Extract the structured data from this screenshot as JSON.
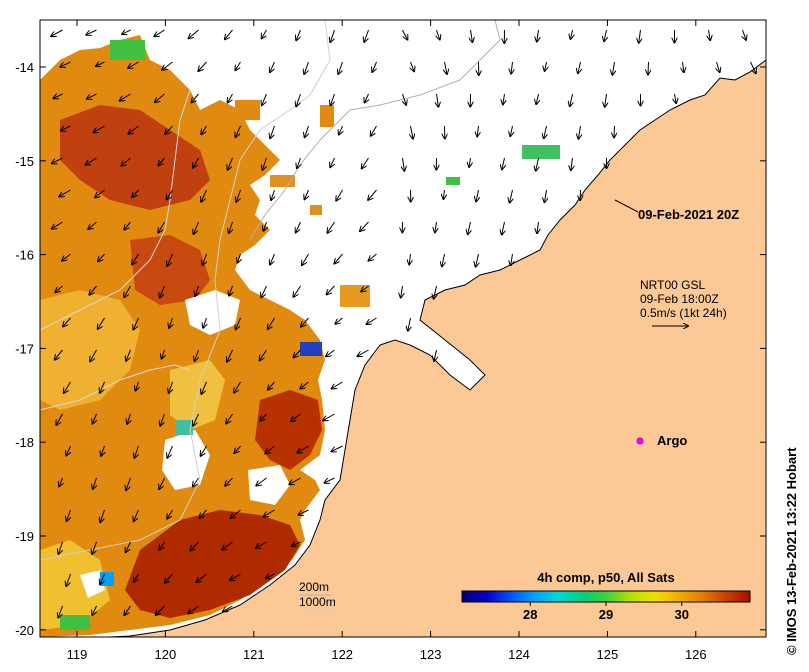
{
  "map": {
    "x_ticks": [
      "119",
      "120",
      "121",
      "122",
      "123",
      "124",
      "125",
      "126"
    ],
    "y_ticks": [
      "-14",
      "-15",
      "-16",
      "-17",
      "-18",
      "-19",
      "-20"
    ],
    "date_label": "09-Feb-2021 20Z",
    "current_info": {
      "line1": "NRT00 GSL",
      "line2": "09-Feb 18:00Z",
      "line3": "0.5m/s (1kt 24h)"
    },
    "argo_label": "Argo",
    "depth_labels": [
      "200m",
      "1000m"
    ],
    "colorbar": {
      "title": "4h comp, p50, All Sats",
      "tick_labels": [
        "28",
        "29",
        "30"
      ],
      "tick_values": [
        28,
        29,
        30
      ],
      "min": 27.1,
      "max": 30.9,
      "colors": [
        "#00007a",
        "#0000c8",
        "#0050ff",
        "#00a0ff",
        "#00d8d8",
        "#00d080",
        "#40d040",
        "#b0e000",
        "#f0e000",
        "#f0b000",
        "#e08000",
        "#c84000",
        "#a01000"
      ]
    },
    "credit": "© IMOS 13-Feb-2021 13:22 Hobart",
    "colors": {
      "land": "#fcc896",
      "ocean": "#ffffff",
      "sst_warm": "#e08a10",
      "sst_hot": "#b02a00",
      "argo": "#ff00ff"
    }
  }
}
